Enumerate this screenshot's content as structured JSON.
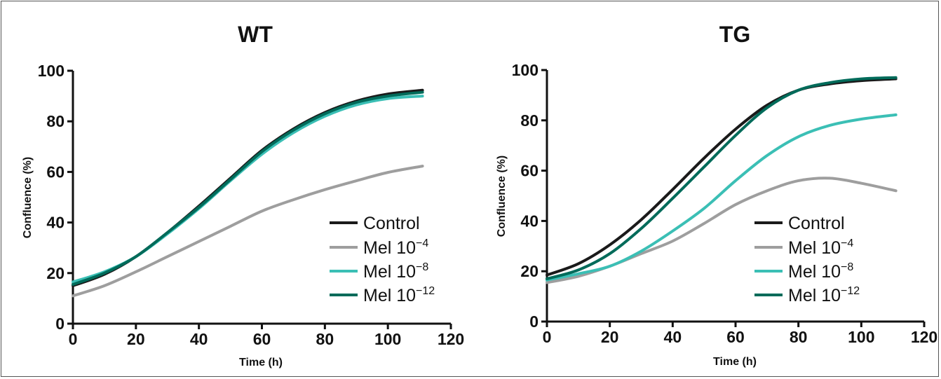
{
  "chart_data": [
    {
      "type": "line",
      "title": "WT",
      "xlabel": "Time (h)",
      "ylabel": "Confluence (%)",
      "xlim": [
        0,
        120
      ],
      "ylim": [
        0,
        100
      ],
      "xticks": [
        "0",
        "20",
        "40",
        "60",
        "80",
        "100",
        "120"
      ],
      "yticks": [
        "0",
        "20",
        "40",
        "60",
        "80",
        "100"
      ],
      "grid": false,
      "legend_position": "bottom-right",
      "x": [
        0,
        10,
        20,
        30,
        40,
        50,
        60,
        70,
        80,
        90,
        100,
        111
      ],
      "series": [
        {
          "name": "Control",
          "legend_base": "Control",
          "legend_exp": "",
          "color": "#1a1a1a",
          "values": [
            15,
            19.5,
            26.5,
            36,
            46.5,
            57.5,
            68.5,
            77,
            83.5,
            88,
            90.8,
            92.3
          ]
        },
        {
          "name": "Mel 10−4",
          "legend_base": "Mel 10",
          "legend_exp": "−4",
          "color": "#9e9e9e",
          "values": [
            11,
            15,
            20.5,
            26.5,
            32.5,
            38.5,
            44.5,
            49,
            53,
            56.5,
            59.8,
            62.3
          ]
        },
        {
          "name": "Mel 10−8",
          "legend_base": "Mel 10",
          "legend_exp": "−8",
          "color": "#3bbfb5",
          "values": [
            16.5,
            20.5,
            26.5,
            35.5,
            45.5,
            56.5,
            67,
            75.5,
            82,
            86.5,
            89,
            90
          ]
        },
        {
          "name": "Mel 10−12",
          "legend_base": "Mel 10",
          "legend_exp": "−12",
          "color": "#006b5a",
          "values": [
            15.5,
            20,
            26.5,
            36,
            46,
            57,
            68,
            76.5,
            83,
            87.5,
            90,
            91.5
          ]
        }
      ]
    },
    {
      "type": "line",
      "title": "TG",
      "xlabel": "Time (h)",
      "ylabel": "Confluence (%)",
      "xlim": [
        0,
        120
      ],
      "ylim": [
        0,
        100
      ],
      "xticks": [
        "0",
        "20",
        "40",
        "60",
        "80",
        "100",
        "120"
      ],
      "yticks": [
        "0",
        "20",
        "40",
        "60",
        "80",
        "100"
      ],
      "grid": false,
      "legend_position": "bottom-right",
      "x": [
        0,
        10,
        20,
        30,
        40,
        50,
        60,
        70,
        80,
        90,
        100,
        111
      ],
      "series": [
        {
          "name": "Control",
          "legend_base": "Control",
          "legend_exp": "",
          "color": "#1a1a1a",
          "values": [
            18.5,
            23,
            30.5,
            40.5,
            52.5,
            65,
            76.5,
            86,
            92,
            94.5,
            95.8,
            96.5
          ]
        },
        {
          "name": "Mel 10−4",
          "legend_base": "Mel 10",
          "legend_exp": "−4",
          "color": "#9e9e9e",
          "values": [
            15.5,
            18,
            22,
            27,
            32,
            39,
            46.5,
            52,
            56,
            57,
            55,
            52
          ]
        },
        {
          "name": "Mel 10−8",
          "legend_base": "Mel 10",
          "legend_exp": "−8",
          "color": "#3bbfb5",
          "values": [
            16.5,
            19,
            22,
            28,
            36,
            45,
            56,
            66,
            73.5,
            78,
            80.5,
            82.2
          ]
        },
        {
          "name": "Mel 10−12",
          "legend_base": "Mel 10",
          "legend_exp": "−12",
          "color": "#006b5a",
          "values": [
            17,
            20.5,
            27,
            37,
            49,
            61.5,
            74,
            85,
            92,
            95,
            96.5,
            97
          ]
        }
      ]
    }
  ]
}
